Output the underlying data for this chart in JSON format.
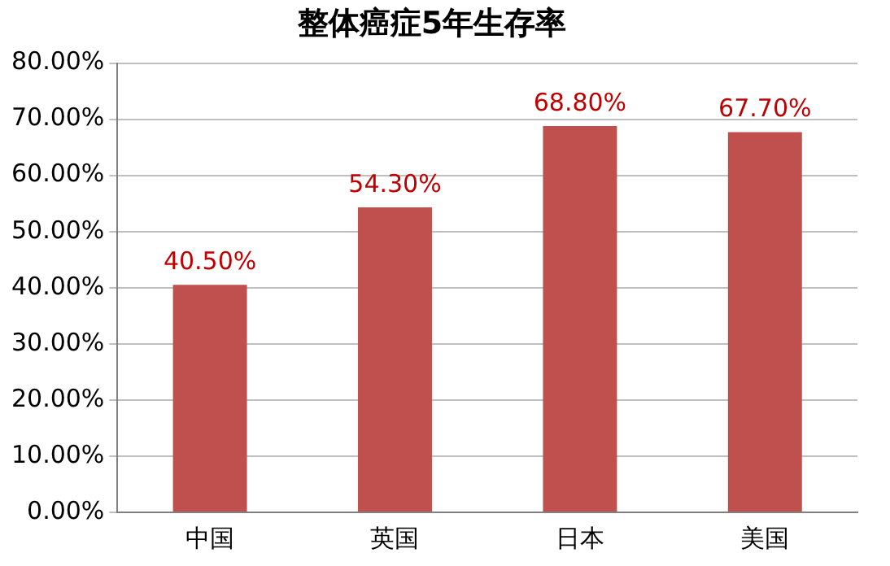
{
  "chart_data": {
    "type": "bar",
    "title": "整体癌症5年生存率",
    "categories": [
      "中国",
      "英国",
      "日本",
      "美国"
    ],
    "values": [
      40.5,
      54.3,
      68.8,
      67.7
    ],
    "value_labels": [
      "40.50%",
      "54.30%",
      "68.80%",
      "67.70%"
    ],
    "color": "#c0504d",
    "ylim": [
      0,
      80
    ],
    "yticks": [
      {
        "value": 0,
        "label": "0.00%"
      },
      {
        "value": 10,
        "label": "10.00%"
      },
      {
        "value": 20,
        "label": "20.00%"
      },
      {
        "value": 30,
        "label": "30.00%"
      },
      {
        "value": 40,
        "label": "40.00%"
      },
      {
        "value": 50,
        "label": "50.00%"
      },
      {
        "value": 60,
        "label": "60.00%"
      },
      {
        "value": 70,
        "label": "70.00%"
      },
      {
        "value": 80,
        "label": "80.00%"
      }
    ],
    "grid": "y"
  }
}
